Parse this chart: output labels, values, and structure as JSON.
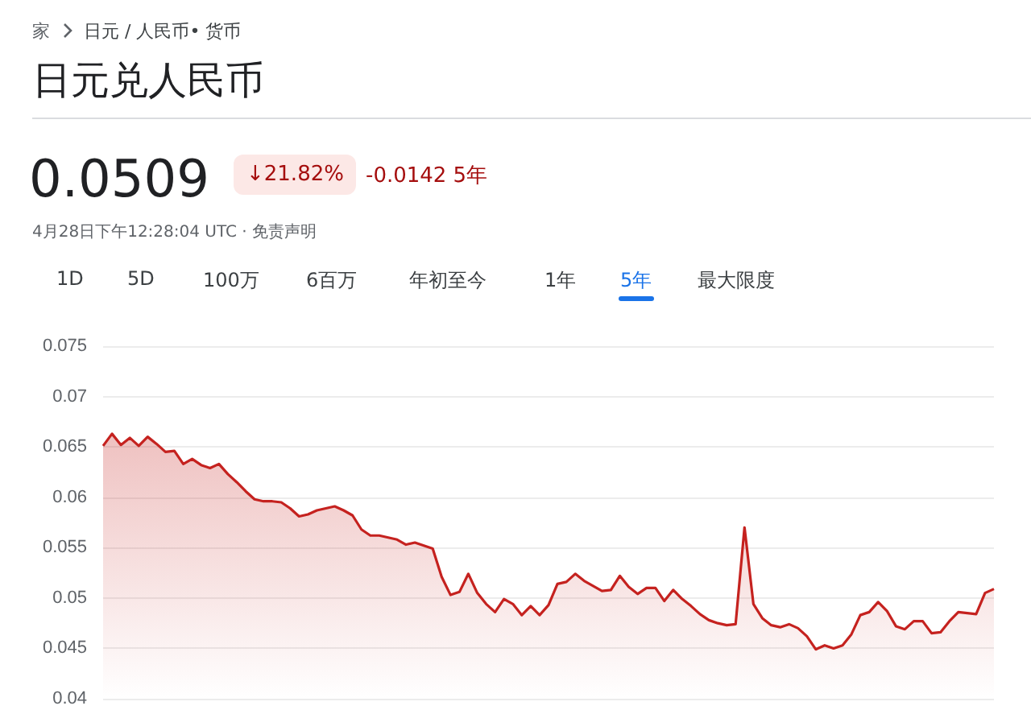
{
  "chart_data": {
    "type": "area",
    "title": "日元兑人民币",
    "annotations": [
      "家",
      "日元 / 人民币• 货币",
      "0.0509",
      "↓21.82%",
      "-0.0142 5年",
      "4月28日下午12:28:04 UTC · 免责声明",
      "1D",
      "5D",
      "100万",
      "6百万",
      "年初至今",
      "1年",
      "5年",
      "最大限度"
    ],
    "categories": [
      null,
      null,
      null,
      null,
      null,
      null,
      null,
      null,
      null,
      null,
      null,
      null,
      null,
      null,
      null,
      null,
      null,
      null,
      null,
      null,
      null,
      null,
      null,
      null,
      null,
      null,
      null,
      null,
      null,
      null,
      null,
      null,
      null,
      null,
      null,
      null,
      null,
      null,
      null,
      null,
      null,
      null,
      null,
      null,
      null,
      null,
      null,
      null,
      null,
      null,
      null,
      null,
      null,
      null,
      null,
      null,
      null,
      null,
      null,
      null,
      null,
      null,
      null,
      null,
      null,
      null,
      null,
      null,
      null,
      null,
      null,
      null,
      null,
      null,
      null,
      null,
      null,
      null,
      null,
      null,
      null,
      null,
      null,
      null,
      null,
      null,
      null,
      null,
      null,
      null,
      null,
      null,
      null,
      null,
      null,
      null,
      null,
      null,
      null,
      null,
      null
    ],
    "series": [
      {
        "color": "#c5221f",
        "values": [
          0.0651,
          0.0663,
          0.0652,
          0.0659,
          0.0651,
          0.066,
          0.0653,
          0.0645,
          0.0646,
          0.0633,
          0.0638,
          0.0632,
          0.0629,
          0.0633,
          0.0623,
          0.0615,
          0.0606,
          0.0598,
          0.0596,
          0.0596,
          0.0595,
          0.0589,
          0.0581,
          0.0583,
          0.0587,
          0.0589,
          0.0591,
          0.0587,
          0.0582,
          0.0568,
          0.0562,
          0.0562,
          0.056,
          0.0558,
          0.0553,
          0.0555,
          0.0552,
          0.0549,
          0.0521,
          0.0503,
          0.0506,
          0.0524,
          0.0505,
          0.0494,
          0.0486,
          0.0499,
          0.0494,
          0.0483,
          0.0492,
          0.0483,
          0.0493,
          0.0514,
          0.0516,
          0.0524,
          0.0517,
          0.0512,
          0.0507,
          0.0508,
          0.0522,
          0.0511,
          0.0504,
          0.051,
          0.051,
          0.0497,
          0.0508,
          0.0499,
          0.0492,
          0.0484,
          0.0478,
          0.0475,
          0.0473,
          0.0474,
          0.057,
          0.0494,
          0.048,
          0.0473,
          0.0471,
          0.0474,
          0.047,
          0.0462,
          0.0449,
          0.0453,
          0.045,
          0.0453,
          0.0464,
          0.0483,
          0.0486,
          0.0496,
          0.0487,
          0.0472,
          0.0469,
          0.0477,
          0.0477,
          0.0465,
          0.0466,
          0.0477,
          0.0486,
          0.0485,
          0.0484,
          0.0505,
          0.0509
        ]
      }
    ],
    "ylim": [
      0.04,
      0.075
    ],
    "yticks": [
      0.04,
      0.045,
      0.05,
      0.055,
      0.06,
      0.065,
      0.07,
      0.075
    ],
    "grid": "y",
    "line_style": "solid"
  }
}
